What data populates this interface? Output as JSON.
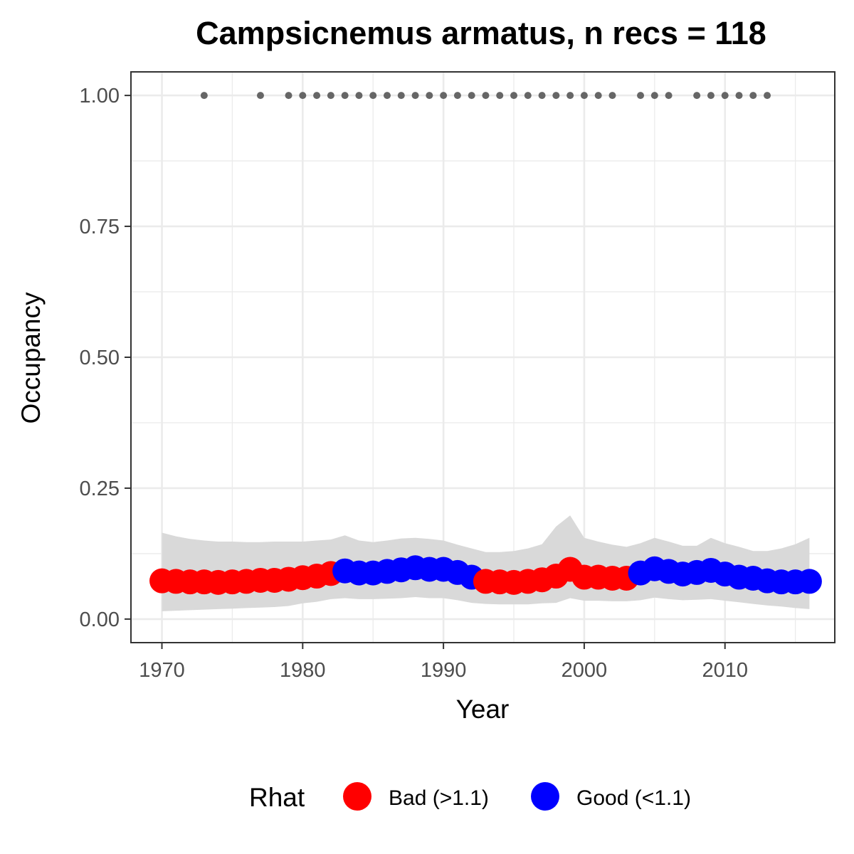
{
  "chart_data": {
    "type": "line",
    "title": "Campsicnemus armatus, n recs = 118",
    "xlabel": "Year",
    "ylabel": "Occupancy",
    "xlim": [
      1967.8,
      2017.8
    ],
    "ylim": [
      -0.045,
      1.045
    ],
    "x_ticks": [
      1970,
      1980,
      1990,
      2000,
      2010
    ],
    "x_tick_labels": [
      "1970",
      "1980",
      "1990",
      "2000",
      "2010"
    ],
    "y_ticks": [
      0,
      0.25,
      0.5,
      0.75,
      1
    ],
    "y_tick_labels": [
      "0.00",
      "0.25",
      "0.50",
      "0.75",
      "1.00"
    ],
    "grid": true,
    "legend": {
      "title": "Rhat",
      "position": "bottom",
      "entries": [
        {
          "label": "Bad (>1.1)",
          "color": "#ff0000"
        },
        {
          "label": "Good (<1.1)",
          "color": "#0000ff"
        }
      ]
    },
    "colors": {
      "bad": "#ff0000",
      "good": "#0000ff",
      "ribbon": "#d9d9d9",
      "records": "#666666"
    },
    "occupancy": {
      "x": [
        1970,
        1971,
        1972,
        1973,
        1974,
        1975,
        1976,
        1977,
        1978,
        1979,
        1980,
        1981,
        1982,
        1983,
        1984,
        1985,
        1986,
        1987,
        1988,
        1989,
        1990,
        1991,
        1992,
        1993,
        1994,
        1995,
        1996,
        1997,
        1998,
        1999,
        2000,
        2001,
        2002,
        2003,
        2004,
        2005,
        2006,
        2007,
        2008,
        2009,
        2010,
        2011,
        2012,
        2013,
        2014,
        2015,
        2016
      ],
      "mean": [
        0.073,
        0.072,
        0.071,
        0.071,
        0.07,
        0.071,
        0.072,
        0.074,
        0.074,
        0.076,
        0.079,
        0.082,
        0.087,
        0.092,
        0.088,
        0.088,
        0.091,
        0.094,
        0.098,
        0.095,
        0.095,
        0.089,
        0.08,
        0.072,
        0.071,
        0.07,
        0.072,
        0.075,
        0.082,
        0.095,
        0.08,
        0.08,
        0.078,
        0.078,
        0.088,
        0.096,
        0.091,
        0.086,
        0.089,
        0.093,
        0.086,
        0.08,
        0.078,
        0.073,
        0.071,
        0.071,
        0.072
      ],
      "lower": [
        0.015,
        0.016,
        0.017,
        0.018,
        0.019,
        0.02,
        0.021,
        0.022,
        0.023,
        0.025,
        0.03,
        0.033,
        0.038,
        0.04,
        0.038,
        0.038,
        0.039,
        0.04,
        0.042,
        0.04,
        0.04,
        0.036,
        0.031,
        0.029,
        0.028,
        0.028,
        0.028,
        0.03,
        0.031,
        0.04,
        0.035,
        0.035,
        0.034,
        0.034,
        0.036,
        0.041,
        0.038,
        0.036,
        0.037,
        0.038,
        0.035,
        0.032,
        0.029,
        0.026,
        0.024,
        0.021,
        0.019
      ],
      "upper": [
        0.165,
        0.158,
        0.153,
        0.15,
        0.148,
        0.148,
        0.147,
        0.147,
        0.148,
        0.148,
        0.148,
        0.15,
        0.152,
        0.16,
        0.15,
        0.147,
        0.15,
        0.154,
        0.155,
        0.153,
        0.15,
        0.142,
        0.135,
        0.128,
        0.128,
        0.13,
        0.135,
        0.143,
        0.177,
        0.198,
        0.155,
        0.148,
        0.142,
        0.138,
        0.145,
        0.155,
        0.148,
        0.14,
        0.14,
        0.155,
        0.145,
        0.138,
        0.13,
        0.13,
        0.135,
        0.143,
        0.155
      ],
      "rhat_status": [
        "bad",
        "bad",
        "bad",
        "bad",
        "bad",
        "bad",
        "bad",
        "bad",
        "bad",
        "bad",
        "bad",
        "bad",
        "bad",
        "good",
        "good",
        "good",
        "good",
        "good",
        "good",
        "good",
        "good",
        "good",
        "good",
        "bad",
        "bad",
        "bad",
        "bad",
        "bad",
        "bad",
        "bad",
        "bad",
        "bad",
        "bad",
        "bad",
        "good",
        "good",
        "good",
        "good",
        "good",
        "good",
        "good",
        "good",
        "good",
        "good",
        "good",
        "good",
        "good"
      ]
    },
    "records": {
      "x": [
        1973,
        1977,
        1979,
        1980,
        1981,
        1982,
        1983,
        1984,
        1985,
        1986,
        1987,
        1988,
        1989,
        1990,
        1991,
        1992,
        1993,
        1994,
        1995,
        1996,
        1997,
        1998,
        1999,
        2000,
        2001,
        2002,
        2004,
        2005,
        2006,
        2008,
        2009,
        2010,
        2011,
        2012,
        2013
      ],
      "y": 1
    }
  }
}
